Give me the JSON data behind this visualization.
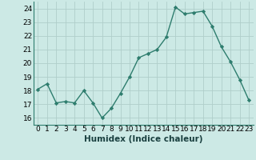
{
  "x": [
    0,
    1,
    2,
    3,
    4,
    5,
    6,
    7,
    8,
    9,
    10,
    11,
    12,
    13,
    14,
    15,
    16,
    17,
    18,
    19,
    20,
    21,
    22,
    23
  ],
  "y": [
    18.1,
    18.5,
    17.1,
    17.2,
    17.1,
    18.0,
    17.1,
    16.0,
    16.7,
    17.8,
    19.0,
    20.4,
    20.7,
    21.0,
    21.9,
    24.1,
    23.6,
    23.7,
    23.8,
    22.7,
    21.2,
    20.1,
    18.8,
    17.3
  ],
  "line_color": "#2e7d6e",
  "marker": "D",
  "marker_size": 2.2,
  "bg_color": "#cce9e5",
  "grid_color": "#b0ceca",
  "xlabel": "Humidex (Indice chaleur)",
  "xlim": [
    -0.5,
    23.5
  ],
  "ylim": [
    15.5,
    24.5
  ],
  "yticks": [
    16,
    17,
    18,
    19,
    20,
    21,
    22,
    23,
    24
  ],
  "xticks": [
    0,
    1,
    2,
    3,
    4,
    5,
    6,
    7,
    8,
    9,
    10,
    11,
    12,
    13,
    14,
    15,
    16,
    17,
    18,
    19,
    20,
    21,
    22,
    23
  ],
  "line_width": 1.0,
  "tick_font_size": 6.5,
  "xlabel_font_size": 7.5
}
